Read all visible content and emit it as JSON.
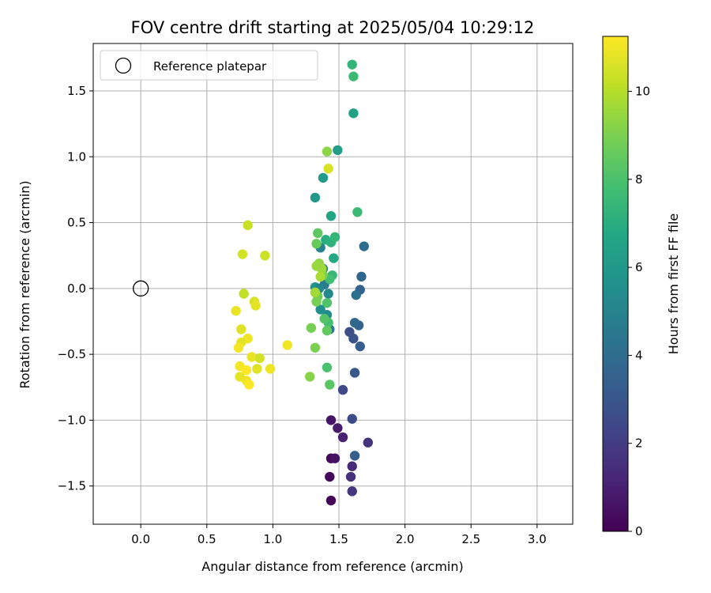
{
  "chart_data": {
    "type": "scatter",
    "title": "FOV centre drift starting at 2025/05/04 10:29:12",
    "xlabel": "Angular distance from reference (arcmin)",
    "ylabel": "Rotation from reference (arcmin)",
    "xlim": [
      -0.36,
      3.27
    ],
    "ylim": [
      -1.79,
      1.86
    ],
    "xticks": [
      0.0,
      0.5,
      1.0,
      1.5,
      2.0,
      2.5,
      3.0
    ],
    "yticks": [
      -1.5,
      -1.0,
      -0.5,
      0.0,
      0.5,
      1.0,
      1.5
    ],
    "xtick_labels": [
      "0.0",
      "0.5",
      "1.0",
      "1.5",
      "2.0",
      "2.5",
      "3.0"
    ],
    "ytick_labels": [
      "−1.5",
      "−1.0",
      "−0.5",
      "0.0",
      "0.5",
      "1.0",
      "1.5"
    ],
    "grid": true,
    "legend": {
      "position": "top-left",
      "entries": [
        "Reference platepar"
      ]
    },
    "reference_point": {
      "x": 0.0,
      "y": 0.0,
      "label": "Reference platepar"
    },
    "colorbar": {
      "label": "Hours from first FF file",
      "colormap": "viridis",
      "range": [
        0,
        11.25
      ],
      "ticks": [
        0,
        2,
        4,
        6,
        8,
        10
      ],
      "tick_labels": [
        "0",
        "2",
        "4",
        "6",
        "8",
        "10"
      ]
    },
    "points": [
      {
        "x": 1.44,
        "y": -1.61,
        "c": 0.1
      },
      {
        "x": 1.43,
        "y": -1.43,
        "c": 0.2
      },
      {
        "x": 1.44,
        "y": -1.29,
        "c": 0.3
      },
      {
        "x": 1.47,
        "y": -1.29,
        "c": 0.5
      },
      {
        "x": 1.44,
        "y": -1.0,
        "c": 0.6
      },
      {
        "x": 1.49,
        "y": -1.06,
        "c": 0.8
      },
      {
        "x": 1.53,
        "y": -1.13,
        "c": 1.1
      },
      {
        "x": 1.6,
        "y": -1.35,
        "c": 1.3
      },
      {
        "x": 1.59,
        "y": -1.43,
        "c": 1.5
      },
      {
        "x": 1.6,
        "y": -1.54,
        "c": 1.8
      },
      {
        "x": 1.72,
        "y": -1.17,
        "c": 1.6
      },
      {
        "x": 1.53,
        "y": -0.77,
        "c": 2.4
      },
      {
        "x": 1.6,
        "y": -0.99,
        "c": 2.6
      },
      {
        "x": 1.62,
        "y": -1.27,
        "c": 3.4
      },
      {
        "x": 1.62,
        "y": -0.64,
        "c": 3.1
      },
      {
        "x": 1.58,
        "y": -0.33,
        "c": 2.7
      },
      {
        "x": 1.61,
        "y": -0.38,
        "c": 2.9
      },
      {
        "x": 1.66,
        "y": -0.44,
        "c": 3.3
      },
      {
        "x": 1.65,
        "y": -0.28,
        "c": 3.6
      },
      {
        "x": 1.62,
        "y": -0.26,
        "c": 3.8
      },
      {
        "x": 1.66,
        "y": -0.01,
        "c": 3.5
      },
      {
        "x": 1.63,
        "y": -0.05,
        "c": 4.2
      },
      {
        "x": 1.67,
        "y": 0.09,
        "c": 3.7
      },
      {
        "x": 1.69,
        "y": 0.32,
        "c": 4.0
      },
      {
        "x": 1.43,
        "y": -0.31,
        "c": 4.4
      },
      {
        "x": 1.39,
        "y": 0.03,
        "c": 4.6
      },
      {
        "x": 1.38,
        "y": 0.15,
        "c": 4.8
      },
      {
        "x": 1.36,
        "y": 0.31,
        "c": 5.0
      },
      {
        "x": 1.42,
        "y": -0.04,
        "c": 5.2
      },
      {
        "x": 1.41,
        "y": -0.2,
        "c": 5.4
      },
      {
        "x": 1.36,
        "y": -0.16,
        "c": 5.6
      },
      {
        "x": 1.32,
        "y": 0.01,
        "c": 5.8
      },
      {
        "x": 1.35,
        "y": 0.0,
        "c": 5.1
      },
      {
        "x": 1.32,
        "y": 0.69,
        "c": 6.0
      },
      {
        "x": 1.38,
        "y": 0.84,
        "c": 6.1
      },
      {
        "x": 1.49,
        "y": 1.05,
        "c": 6.2
      },
      {
        "x": 1.61,
        "y": 1.33,
        "c": 6.4
      },
      {
        "x": 1.6,
        "y": 1.7,
        "c": 7.4
      },
      {
        "x": 1.61,
        "y": 1.61,
        "c": 7.6
      },
      {
        "x": 1.44,
        "y": 0.55,
        "c": 6.6
      },
      {
        "x": 1.46,
        "y": 0.23,
        "c": 6.8
      },
      {
        "x": 1.4,
        "y": 0.37,
        "c": 7.0
      },
      {
        "x": 1.44,
        "y": 0.35,
        "c": 7.2
      },
      {
        "x": 1.47,
        "y": 0.39,
        "c": 7.4
      },
      {
        "x": 1.64,
        "y": 0.58,
        "c": 7.6
      },
      {
        "x": 1.45,
        "y": 0.1,
        "c": 7.5
      },
      {
        "x": 1.43,
        "y": 0.07,
        "c": 7.8
      },
      {
        "x": 1.42,
        "y": -0.26,
        "c": 7.9
      },
      {
        "x": 1.41,
        "y": -0.6,
        "c": 8.0
      },
      {
        "x": 1.43,
        "y": -0.73,
        "c": 8.3
      },
      {
        "x": 1.41,
        "y": -0.11,
        "c": 8.1
      },
      {
        "x": 1.39,
        "y": -0.23,
        "c": 8.2
      },
      {
        "x": 1.34,
        "y": 0.42,
        "c": 8.4
      },
      {
        "x": 1.33,
        "y": 0.34,
        "c": 8.6
      },
      {
        "x": 1.38,
        "y": 0.1,
        "c": 8.8
      },
      {
        "x": 1.34,
        "y": -0.06,
        "c": 8.7
      },
      {
        "x": 1.33,
        "y": -0.1,
        "c": 8.9
      },
      {
        "x": 1.41,
        "y": -0.32,
        "c": 8.5
      },
      {
        "x": 1.29,
        "y": -0.3,
        "c": 8.9
      },
      {
        "x": 1.32,
        "y": -0.45,
        "c": 9.0
      },
      {
        "x": 1.28,
        "y": -0.67,
        "c": 9.2
      },
      {
        "x": 1.41,
        "y": 1.04,
        "c": 9.3
      },
      {
        "x": 1.35,
        "y": 0.19,
        "c": 9.4
      },
      {
        "x": 1.37,
        "y": 0.15,
        "c": 9.6
      },
      {
        "x": 1.33,
        "y": 0.17,
        "c": 9.5
      },
      {
        "x": 1.36,
        "y": 0.09,
        "c": 9.8
      },
      {
        "x": 1.32,
        "y": -0.03,
        "c": 9.7
      },
      {
        "x": 1.42,
        "y": 0.91,
        "c": 10.6
      },
      {
        "x": 0.81,
        "y": 0.48,
        "c": 10.3
      },
      {
        "x": 0.77,
        "y": 0.26,
        "c": 10.5
      },
      {
        "x": 0.94,
        "y": 0.25,
        "c": 10.4
      },
      {
        "x": 0.78,
        "y": -0.04,
        "c": 10.2
      },
      {
        "x": 0.86,
        "y": -0.1,
        "c": 10.6
      },
      {
        "x": 0.87,
        "y": -0.13,
        "c": 10.8
      },
      {
        "x": 0.72,
        "y": -0.17,
        "c": 10.9
      },
      {
        "x": 0.76,
        "y": -0.31,
        "c": 10.7
      },
      {
        "x": 0.81,
        "y": -0.38,
        "c": 11.0
      },
      {
        "x": 0.76,
        "y": -0.41,
        "c": 10.8
      },
      {
        "x": 0.74,
        "y": -0.45,
        "c": 11.1
      },
      {
        "x": 1.11,
        "y": -0.43,
        "c": 11.0
      },
      {
        "x": 0.84,
        "y": -0.52,
        "c": 10.9
      },
      {
        "x": 0.9,
        "y": -0.53,
        "c": 10.5
      },
      {
        "x": 0.75,
        "y": -0.59,
        "c": 11.1
      },
      {
        "x": 0.8,
        "y": -0.62,
        "c": 11.2
      },
      {
        "x": 0.88,
        "y": -0.61,
        "c": 10.7
      },
      {
        "x": 0.98,
        "y": -0.61,
        "c": 11.0
      },
      {
        "x": 0.75,
        "y": -0.67,
        "c": 10.8
      },
      {
        "x": 0.8,
        "y": -0.7,
        "c": 11.0
      },
      {
        "x": 0.82,
        "y": -0.73,
        "c": 11.2
      }
    ]
  }
}
